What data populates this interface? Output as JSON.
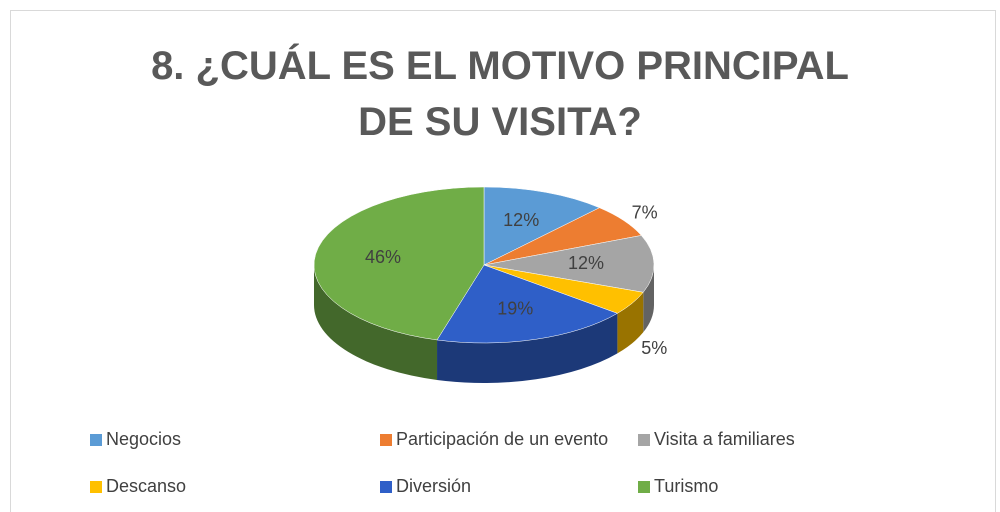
{
  "chart_data": {
    "type": "pie3d",
    "title": "8. ¿CUÁL ES EL MOTIVO PRINCIPAL DE SU VISITA?",
    "categories": [
      "Negocios",
      "Participación de un evento",
      "Visita a familiares",
      "Descanso",
      "Diversión",
      "Turismo"
    ],
    "values": [
      12,
      7,
      12,
      5,
      19,
      46
    ],
    "value_labels": [
      "12%",
      "7%",
      "12%",
      "5%",
      "19%",
      "46%"
    ],
    "colors": [
      "#5b9bd5",
      "#ed7d31",
      "#a5a5a5",
      "#ffc000",
      "#2f5fc8",
      "#70ad47"
    ],
    "legend": "bottom"
  }
}
